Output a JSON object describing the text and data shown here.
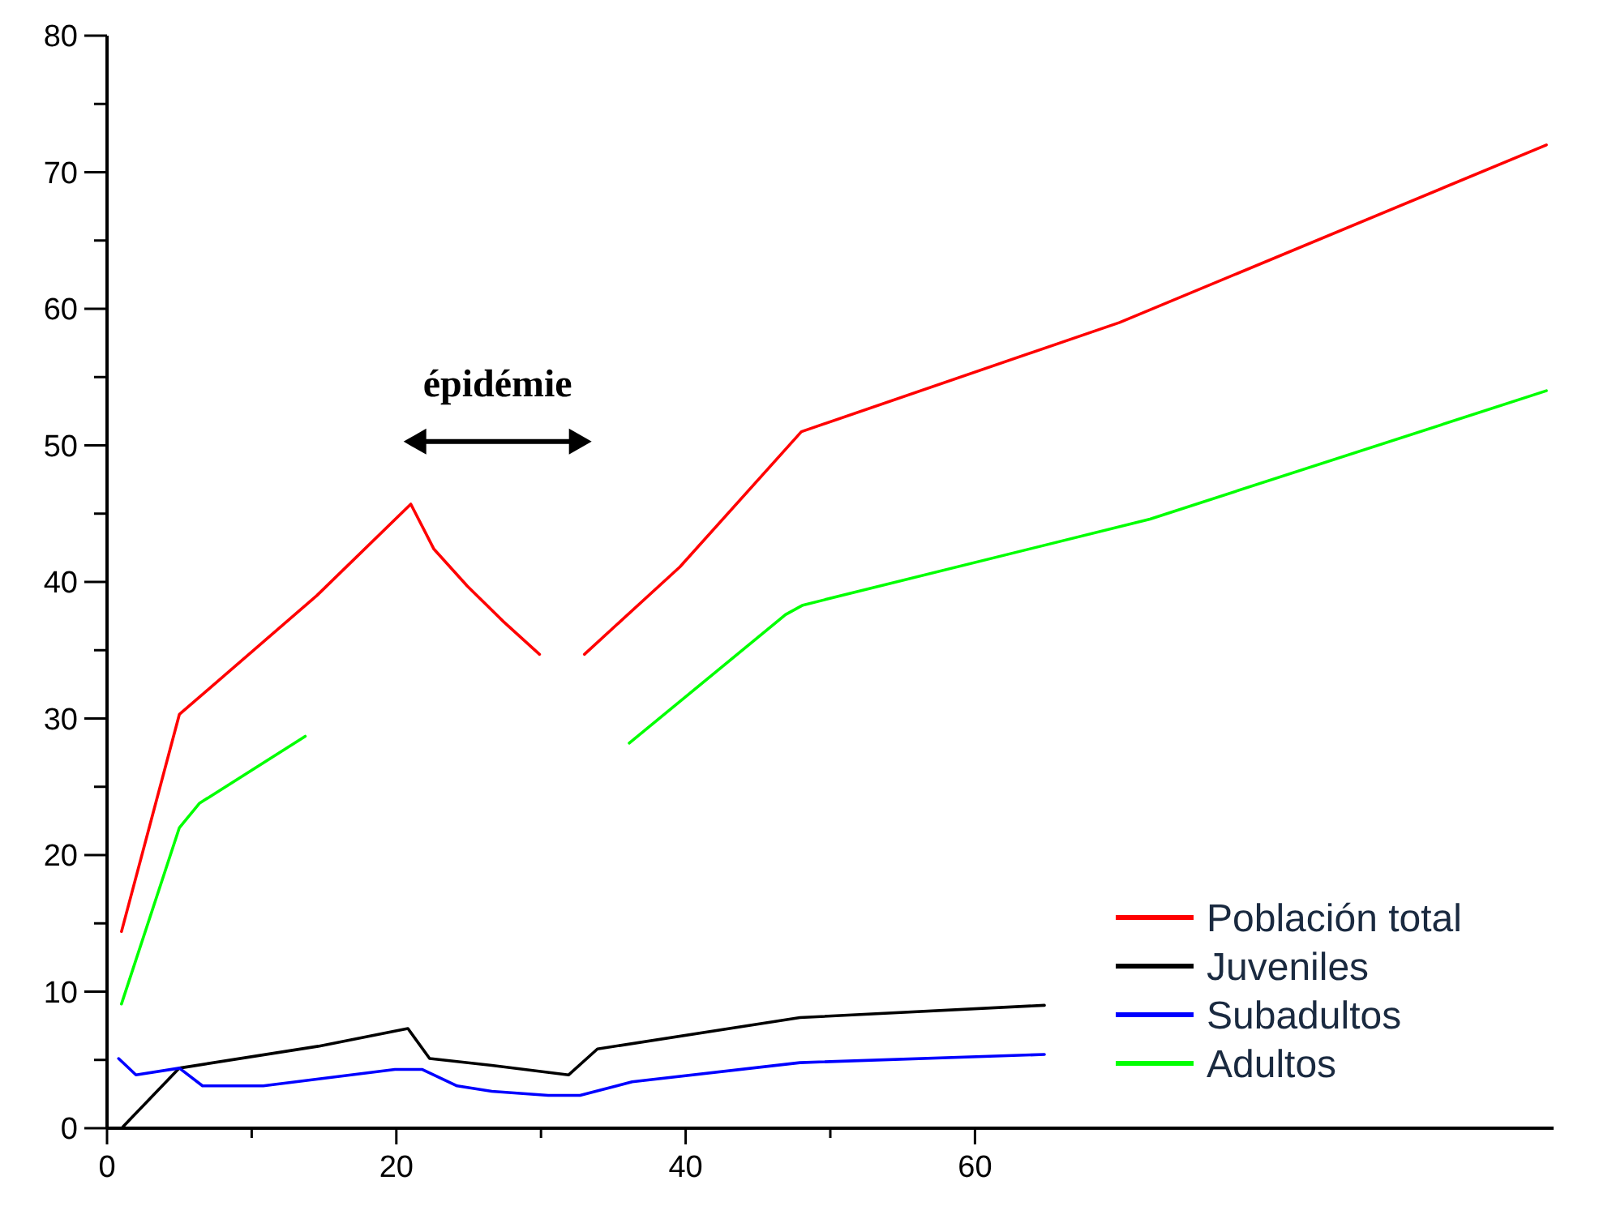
{
  "chart_data": {
    "type": "line",
    "xlim": [
      0,
      100
    ],
    "ylim": [
      0,
      80
    ],
    "xticks": [
      0,
      {
        "value": 10,
        "label": null
      },
      20,
      {
        "value": 30,
        "label": null
      },
      40,
      {
        "value": 50,
        "label": null
      },
      60
    ],
    "yticks": [
      0,
      {
        "value": 5,
        "label": null
      },
      10,
      {
        "value": 15,
        "label": null
      },
      20,
      {
        "value": 25,
        "label": null
      },
      30,
      {
        "value": 35,
        "label": null
      },
      40,
      {
        "value": 45,
        "label": null
      },
      50,
      {
        "value": 55,
        "label": null
      },
      60,
      {
        "value": 65,
        "label": null
      },
      70,
      {
        "value": 75,
        "label": null
      },
      80
    ],
    "legend": "bottom right",
    "grid": false,
    "annotations": [
      "épidémie"
    ],
    "series": [
      {
        "name": "Población total",
        "color": "#ff0000",
        "x": [
          1,
          5,
          14.5,
          21,
          22.6,
          24.9,
          27.4,
          29.9,
          31,
          33,
          39.6,
          48,
          70,
          99.5
        ],
        "values": [
          14.4,
          30.3,
          39,
          45.7,
          42.4,
          39.7,
          37.1,
          34.7,
          null,
          34.7,
          41.1,
          51,
          59,
          72
        ]
      },
      {
        "name": "Juveniles",
        "color": "#000000",
        "x": [
          1.1,
          5,
          14.6,
          20.8,
          22.3,
          26.6,
          31.9,
          33.9,
          47.9,
          64.8
        ],
        "values": [
          0.1,
          4.4,
          6,
          7.3,
          5.1,
          4.6,
          3.9,
          5.8,
          8.1,
          9
        ]
      },
      {
        "name": "Subadultos",
        "color": "#0000ff",
        "x": [
          0.8,
          2,
          5,
          6.6,
          10.8,
          19.9,
          21.8,
          24.2,
          26.6,
          30.5,
          32.7,
          36.3,
          47.9,
          64.8
        ],
        "values": [
          5.1,
          3.9,
          4.4,
          3.1,
          3.1,
          4.3,
          4.3,
          3.1,
          2.7,
          2.4,
          2.4,
          3.4,
          4.8,
          5.4
        ]
      },
      {
        "name": "Adultos",
        "color": "#00ff00",
        "x": [
          1,
          5,
          6.4,
          13.7,
          25,
          36.1,
          46.9,
          48.1,
          72.1,
          99.5
        ],
        "values": [
          9.1,
          22,
          23.8,
          28.7,
          null,
          28.2,
          37.6,
          38.3,
          44.6,
          54
        ]
      }
    ]
  }
}
